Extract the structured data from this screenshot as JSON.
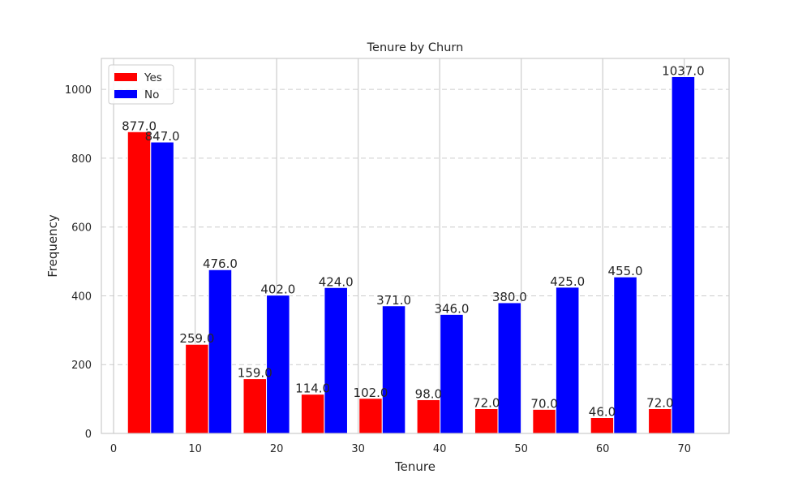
{
  "chart_data": {
    "type": "bar",
    "title": "Tenure by Churn",
    "xlabel": "Tenure",
    "ylabel": "Frequency",
    "xlim": [
      -1.5,
      75.5
    ],
    "ylim": [
      0,
      1090
    ],
    "xticks": [
      0,
      10,
      20,
      30,
      40,
      50,
      60,
      70
    ],
    "yticks": [
      0,
      200,
      400,
      600,
      800,
      1000
    ],
    "bin_edges": [
      1,
      8.1,
      15.2,
      22.3,
      29.4,
      36.5,
      43.6,
      50.7,
      57.8,
      64.9,
      72
    ],
    "series": [
      {
        "name": "Yes",
        "color": "#ff0000",
        "values": [
          877,
          259,
          159,
          114,
          102,
          98,
          72,
          70,
          46,
          72
        ]
      },
      {
        "name": "No",
        "color": "#0000ff",
        "values": [
          847,
          476,
          402,
          424,
          371,
          346,
          380,
          425,
          455,
          1037
        ]
      }
    ],
    "data_labels": {
      "Yes": [
        "877.0",
        "259.0",
        "159.0",
        "114.0",
        "102.0",
        "98.0",
        "72.0",
        "70.0",
        "46.0",
        "72.0"
      ],
      "No": [
        "847.0",
        "476.0",
        "402.0",
        "424.0",
        "371.0",
        "346.0",
        "380.0",
        "425.0",
        "455.0",
        "1037.0"
      ]
    },
    "grid": {
      "x": "solid",
      "y": "dashed"
    },
    "legend": {
      "position": "top-left"
    }
  }
}
